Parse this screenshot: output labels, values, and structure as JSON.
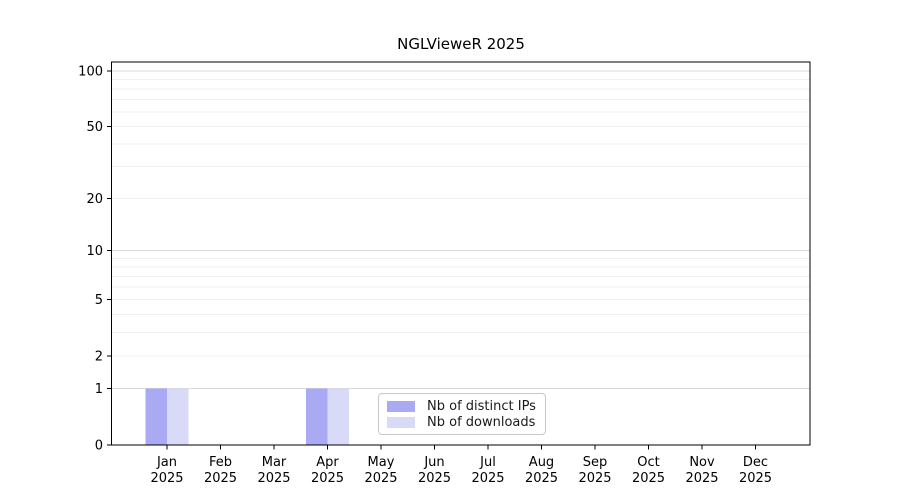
{
  "chart_data": {
    "type": "bar",
    "title": "NGLVieweR 2025",
    "categories": [
      {
        "month": "Jan",
        "year": "2025"
      },
      {
        "month": "Feb",
        "year": "2025"
      },
      {
        "month": "Mar",
        "year": "2025"
      },
      {
        "month": "Apr",
        "year": "2025"
      },
      {
        "month": "May",
        "year": "2025"
      },
      {
        "month": "Jun",
        "year": "2025"
      },
      {
        "month": "Jul",
        "year": "2025"
      },
      {
        "month": "Aug",
        "year": "2025"
      },
      {
        "month": "Sep",
        "year": "2025"
      },
      {
        "month": "Oct",
        "year": "2025"
      },
      {
        "month": "Nov",
        "year": "2025"
      },
      {
        "month": "Dec",
        "year": "2025"
      }
    ],
    "series": [
      {
        "name": "Nb of distinct IPs",
        "color": "#a9a9f4",
        "values": [
          1,
          0,
          0,
          1,
          0,
          0,
          0,
          0,
          0,
          0,
          0,
          0
        ]
      },
      {
        "name": "Nb of downloads",
        "color": "#d9d9f8",
        "values": [
          1,
          0,
          0,
          1,
          0,
          0,
          0,
          0,
          0,
          0,
          0,
          0
        ]
      }
    ],
    "y_axis": {
      "scale": "log1p",
      "ticks": [
        0,
        1,
        2,
        5,
        10,
        20,
        50,
        100
      ],
      "max": 112,
      "major_gridlines": [
        1,
        10,
        100
      ],
      "minor_gridlines": [
        2,
        3,
        4,
        5,
        6,
        7,
        8,
        9,
        20,
        30,
        40,
        50,
        60,
        70,
        80,
        90
      ]
    },
    "legend": {
      "position": "lower center"
    },
    "grid": true,
    "colors": {
      "major_grid": "#d8d8d8",
      "minor_grid": "#f0f0f0",
      "spine": "#000000",
      "tick_text": "#000000"
    }
  }
}
